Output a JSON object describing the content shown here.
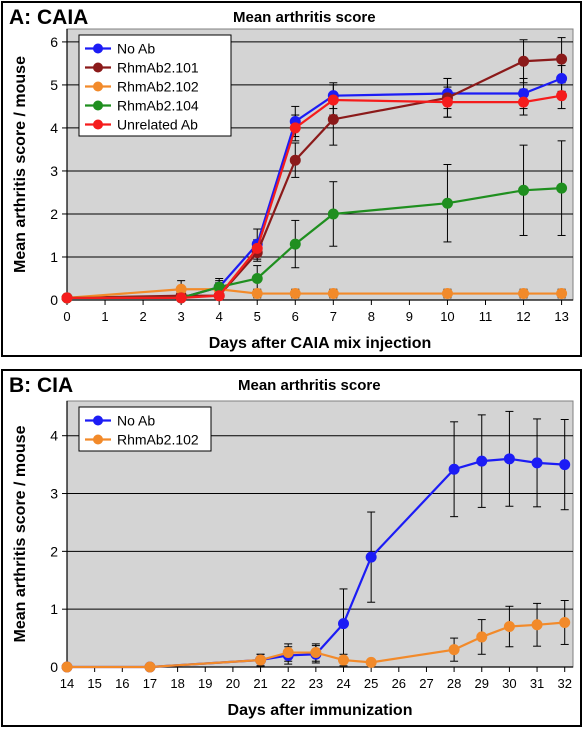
{
  "chart_data": [
    {
      "type": "line",
      "panel_label": "A: CAIA",
      "title": "Mean arthritis score",
      "xlabel": "Days after CAIA mix injection",
      "ylabel": "Mean arthritis score / mouse",
      "xlim": [
        0,
        13.3
      ],
      "ylim": [
        0,
        6.3
      ],
      "xticks": [
        0,
        1,
        2,
        3,
        4,
        5,
        6,
        7,
        8,
        9,
        10,
        11,
        12,
        13
      ],
      "yticks": [
        0,
        1,
        2,
        3,
        4,
        5,
        6
      ],
      "grid": "horizontal",
      "legend_position": "top-left",
      "colors": {
        "plot_bg": "#d4d4d4"
      },
      "series": [
        {
          "name": "No Ab",
          "color": "#1c1cf5",
          "x": [
            0,
            3,
            4,
            5,
            6,
            7,
            10,
            12,
            13
          ],
          "y": [
            0.05,
            0.05,
            0.3,
            1.3,
            4.15,
            4.75,
            4.8,
            4.8,
            5.15
          ],
          "err": [
            0,
            0.05,
            0.2,
            0.35,
            0.35,
            0.3,
            0.35,
            0.35,
            0.3
          ]
        },
        {
          "name": "RhmAb2.101",
          "color": "#8b1a1a",
          "x": [
            0,
            3,
            4,
            5,
            6,
            7,
            10,
            12,
            13
          ],
          "y": [
            0.05,
            0.1,
            0.1,
            1.1,
            3.25,
            4.2,
            4.7,
            5.55,
            5.6
          ],
          "err": [
            0,
            0.05,
            0.05,
            0.2,
            0.4,
            0.6,
            0.45,
            0.5,
            0.5
          ]
        },
        {
          "name": "RhmAb2.102",
          "color": "#f28a2a",
          "x": [
            0,
            3,
            4,
            5,
            6,
            7,
            10,
            12,
            13
          ],
          "y": [
            0.05,
            0.25,
            0.25,
            0.15,
            0.15,
            0.15,
            0.15,
            0.15,
            0.15
          ],
          "err": [
            0,
            0.2,
            0.15,
            0.1,
            0.1,
            0.1,
            0.1,
            0.1,
            0.1
          ]
        },
        {
          "name": "RhmAb2.104",
          "color": "#1f8f1f",
          "x": [
            0,
            3,
            4,
            5,
            6,
            7,
            10,
            12,
            13
          ],
          "y": [
            0.05,
            0.05,
            0.3,
            0.5,
            1.3,
            2.0,
            2.25,
            2.55,
            2.6
          ],
          "err": [
            0,
            0.05,
            0.15,
            0.3,
            0.55,
            0.75,
            0.9,
            1.05,
            1.1
          ]
        },
        {
          "name": "Unrelated Ab",
          "color": "#f51c1c",
          "x": [
            0,
            3,
            4,
            5,
            6,
            7,
            10,
            12,
            13
          ],
          "y": [
            0.05,
            0.05,
            0.1,
            1.2,
            4.0,
            4.65,
            4.6,
            4.6,
            4.75
          ],
          "err": [
            0,
            0.05,
            0.05,
            0.2,
            0.3,
            0.35,
            0.35,
            0.3,
            0.3
          ]
        }
      ]
    },
    {
      "type": "line",
      "panel_label": "B: CIA",
      "title": "Mean arthritis score",
      "xlabel": "Days after immunization",
      "ylabel": "Mean arthritis score / mouse",
      "xlim": [
        14,
        32.3
      ],
      "ylim": [
        0,
        4.6
      ],
      "xticks": [
        14,
        15,
        16,
        17,
        18,
        19,
        20,
        21,
        22,
        23,
        24,
        25,
        26,
        27,
        28,
        29,
        30,
        31,
        32
      ],
      "yticks": [
        0,
        1,
        2,
        3,
        4
      ],
      "grid": "horizontal",
      "legend_position": "top-left",
      "colors": {
        "plot_bg": "#d4d4d4"
      },
      "series": [
        {
          "name": "No Ab",
          "color": "#1c1cf5",
          "x": [
            14,
            17,
            21,
            22,
            23,
            24,
            25,
            28,
            29,
            30,
            31,
            32
          ],
          "y": [
            0,
            0,
            0.12,
            0.2,
            0.22,
            0.75,
            1.9,
            3.42,
            3.56,
            3.6,
            3.53,
            3.5
          ],
          "err": [
            0,
            0,
            0.1,
            0.15,
            0.15,
            0.6,
            0.78,
            0.82,
            0.8,
            0.82,
            0.76,
            0.78
          ]
        },
        {
          "name": "RhmAb2.102",
          "color": "#f28a2a",
          "x": [
            14,
            17,
            21,
            22,
            23,
            24,
            25,
            28,
            29,
            30,
            31,
            32
          ],
          "y": [
            0,
            0,
            0.12,
            0.25,
            0.25,
            0.12,
            0.08,
            0.3,
            0.52,
            0.7,
            0.73,
            0.77
          ],
          "err": [
            0,
            0,
            0.1,
            0.15,
            0.15,
            0.1,
            0.05,
            0.2,
            0.3,
            0.35,
            0.37,
            0.38
          ]
        }
      ]
    }
  ]
}
